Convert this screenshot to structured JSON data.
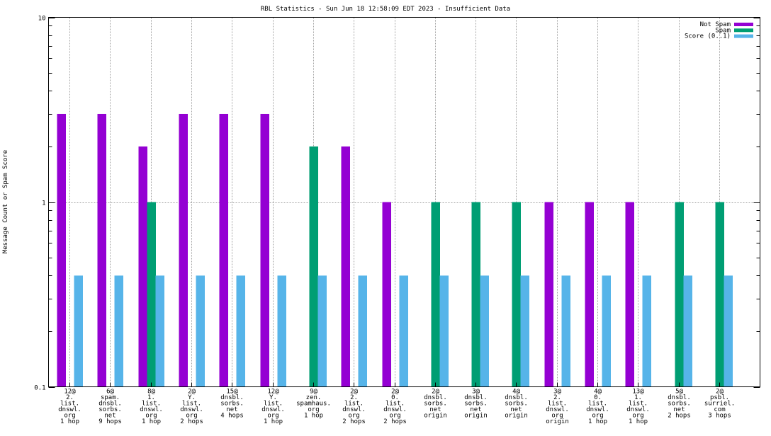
{
  "chart_data": {
    "type": "bar",
    "title": "RBL Statistics - Sun Jun 18 12:58:09 EDT 2023 - Insufficient Data",
    "xlabel": "",
    "ylabel": "Message Count or Spam Score",
    "yscale": "log",
    "ylim": [
      0.1,
      10
    ],
    "yticks": [
      "0.1",
      "1",
      "10"
    ],
    "grid": true,
    "legend_position": "top-right",
    "categories": [
      [
        "12@",
        "2.",
        "list.",
        "dnswl.",
        "org",
        "1 hop"
      ],
      [
        "6@",
        "spam.",
        "dnsbl.",
        "sorbs.",
        "net",
        "9 hops"
      ],
      [
        "8@",
        "1.",
        "list.",
        "dnswl.",
        "org",
        "1 hop"
      ],
      [
        "2@",
        "Y.",
        "list.",
        "dnswl.",
        "org",
        "2 hops"
      ],
      [
        "15@",
        "dnsbl.",
        "sorbs.",
        "net",
        "4 hops"
      ],
      [
        "12@",
        "Y.",
        "list.",
        "dnswl.",
        "org",
        "1 hop"
      ],
      [
        "9@",
        "zen.",
        "spamhaus.",
        "org",
        "1 hop"
      ],
      [
        "2@",
        "2.",
        "list.",
        "dnswl.",
        "org",
        "2 hops"
      ],
      [
        "2@",
        "0.",
        "list.",
        "dnswl.",
        "org",
        "2 hops"
      ],
      [
        "2@",
        "dnsbl.",
        "sorbs.",
        "net",
        "origin"
      ],
      [
        "3@",
        "dnsbl.",
        "sorbs.",
        "net",
        "origin"
      ],
      [
        "4@",
        "dnsbl.",
        "sorbs.",
        "net",
        "origin"
      ],
      [
        "3@",
        "2.",
        "list.",
        "dnswl.",
        "org",
        "origin"
      ],
      [
        "4@",
        "0.",
        "list.",
        "dnswl.",
        "org",
        "1 hop"
      ],
      [
        "13@",
        "1.",
        "list.",
        "dnswl.",
        "org",
        "1 hop"
      ],
      [
        "5@",
        "dnsbl.",
        "sorbs.",
        "net",
        "2 hops"
      ],
      [
        "2@",
        "psbl.",
        "surriel.",
        "com",
        "3 hops"
      ]
    ],
    "series": [
      {
        "name": "Not Spam",
        "color": "#9400d3",
        "values": [
          3,
          3,
          2,
          3,
          3,
          3,
          0,
          2,
          1,
          0,
          0,
          0,
          1,
          1,
          1,
          0,
          0
        ]
      },
      {
        "name": "Spam",
        "color": "#009e73",
        "values": [
          0,
          0,
          1,
          0,
          0,
          0,
          2,
          0,
          0,
          1,
          1,
          1,
          0,
          0,
          0,
          1,
          1
        ]
      },
      {
        "name": "Score (0..1)",
        "color": "#56b4e9",
        "values": [
          0.4,
          0.4,
          0.4,
          0.4,
          0.4,
          0.4,
          0.4,
          0.4,
          0.4,
          0.4,
          0.4,
          0.4,
          0.4,
          0.4,
          0.4,
          0.4,
          0.4
        ]
      }
    ]
  }
}
